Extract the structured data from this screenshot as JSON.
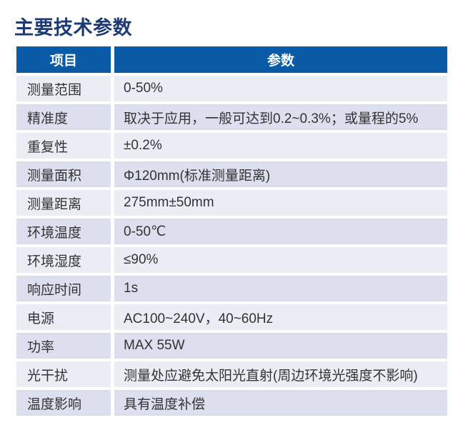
{
  "title": "主要技术参数",
  "colors": {
    "title_color": "#1e3a74",
    "header_bg": "#0b5aa6",
    "header_text": "#ffffff",
    "row_light": "#ebedf5",
    "row_dark": "#dcdfee",
    "body_text": "#333333",
    "page_bg": "#ffffff"
  },
  "table": {
    "headers": [
      "项目",
      "参数"
    ],
    "rows": [
      {
        "item": "测量范围",
        "value": "0-50%"
      },
      {
        "item": "精准度",
        "value": "取决于应用，一般可达到0.2~0.3%；或量程的5%"
      },
      {
        "item": "重复性",
        "value": "±0.2%"
      },
      {
        "item": "测量面积",
        "value": "Φ120mm(标准测量距离)"
      },
      {
        "item": "测量距离",
        "value": "275mm±50mm"
      },
      {
        "item": "环境温度",
        "value": "0-50℃"
      },
      {
        "item": "环境湿度",
        "value": "≤90%"
      },
      {
        "item": "响应时间",
        "value": "1s"
      },
      {
        "item": "电源",
        "value": "AC100~240V，40~60Hz"
      },
      {
        "item": "功率",
        "value": "MAX 55W"
      },
      {
        "item": "光干扰",
        "value": "测量处应避免太阳光直射(周边环境光强度不影响)"
      },
      {
        "item": "温度影响",
        "value": "具有温度补偿"
      }
    ]
  }
}
